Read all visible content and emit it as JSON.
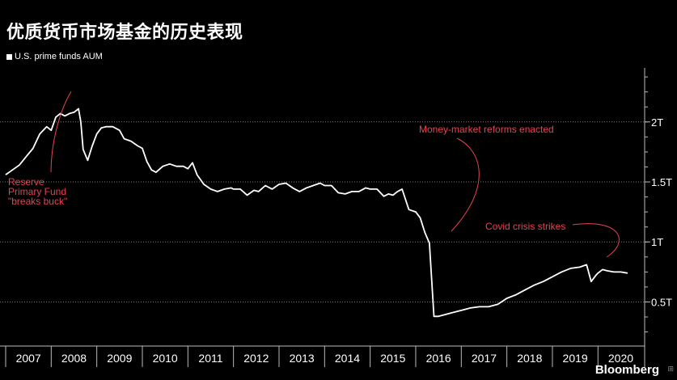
{
  "title": "优质货币市场基金的历史表现",
  "brand": "Bloomberg",
  "brand_mark": "⊞",
  "chart_data": {
    "type": "line",
    "legend": "U.S. prime funds AUM",
    "ylim": [
      0.2,
      2.45
    ],
    "xlim": [
      2007,
      2020.9
    ],
    "y_ticks": [
      {
        "value": 2.0,
        "label": "2T"
      },
      {
        "value": 1.5,
        "label": "1.5T"
      },
      {
        "value": 1.0,
        "label": "1T"
      },
      {
        "value": 0.5,
        "label": "0.5T"
      }
    ],
    "x_labels": [
      "2007",
      "2008",
      "2009",
      "2010",
      "2011",
      "2012",
      "2013",
      "2014",
      "2015",
      "2016",
      "2017",
      "2018",
      "2019",
      "2020"
    ],
    "x": [
      2007.0,
      2007.15,
      2007.3,
      2007.45,
      2007.6,
      2007.75,
      2007.9,
      2008.0,
      2008.1,
      2008.2,
      2008.3,
      2008.4,
      2008.5,
      2008.6,
      2008.65,
      2008.7,
      2008.8,
      2008.9,
      2009.0,
      2009.1,
      2009.2,
      2009.35,
      2009.5,
      2009.6,
      2009.75,
      2009.9,
      2010.0,
      2010.1,
      2010.2,
      2010.3,
      2010.45,
      2010.6,
      2010.75,
      2010.9,
      2011.0,
      2011.1,
      2011.2,
      2011.35,
      2011.5,
      2011.65,
      2011.8,
      2011.95,
      2012.0,
      2012.15,
      2012.3,
      2012.45,
      2012.55,
      2012.7,
      2012.85,
      2013.0,
      2013.15,
      2013.3,
      2013.45,
      2013.6,
      2013.75,
      2013.9,
      2014.0,
      2014.15,
      2014.3,
      2014.45,
      2014.6,
      2014.75,
      2014.9,
      2015.0,
      2015.15,
      2015.3,
      2015.4,
      2015.5,
      2015.6,
      2015.7,
      2015.85,
      2016.0,
      2016.1,
      2016.2,
      2016.3,
      2016.4,
      2016.5,
      2016.6,
      2016.8,
      2017.0,
      2017.2,
      2017.4,
      2017.6,
      2017.8,
      2018.0,
      2018.2,
      2018.4,
      2018.6,
      2018.8,
      2019.0,
      2019.2,
      2019.4,
      2019.6,
      2019.75,
      2019.85,
      2019.95,
      2020.0,
      2020.1,
      2020.2,
      2020.35,
      2020.5,
      2020.65
    ],
    "values": [
      1.56,
      1.6,
      1.64,
      1.71,
      1.78,
      1.9,
      1.96,
      1.93,
      2.04,
      2.07,
      2.05,
      2.07,
      2.08,
      2.11,
      2.0,
      1.77,
      1.68,
      1.8,
      1.9,
      1.95,
      1.96,
      1.96,
      1.93,
      1.86,
      1.84,
      1.8,
      1.78,
      1.67,
      1.6,
      1.58,
      1.63,
      1.65,
      1.63,
      1.63,
      1.61,
      1.66,
      1.56,
      1.48,
      1.44,
      1.42,
      1.44,
      1.45,
      1.44,
      1.44,
      1.39,
      1.43,
      1.42,
      1.47,
      1.44,
      1.48,
      1.49,
      1.45,
      1.42,
      1.45,
      1.47,
      1.49,
      1.47,
      1.47,
      1.41,
      1.4,
      1.42,
      1.42,
      1.45,
      1.44,
      1.44,
      1.38,
      1.4,
      1.39,
      1.42,
      1.44,
      1.27,
      1.25,
      1.2,
      1.08,
      0.99,
      0.38,
      0.38,
      0.39,
      0.41,
      0.43,
      0.45,
      0.46,
      0.46,
      0.48,
      0.53,
      0.56,
      0.6,
      0.64,
      0.67,
      0.71,
      0.75,
      0.78,
      0.79,
      0.81,
      0.67,
      0.72,
      0.74,
      0.77,
      0.76,
      0.75,
      0.75,
      0.74
    ],
    "annotations": [
      {
        "lines": [
          "Reserve",
          "Primary Fund",
          "\"breaks buck\""
        ]
      },
      {
        "lines": [
          "Money-market reforms enacted"
        ]
      },
      {
        "lines": [
          "Covid crisis strikes"
        ]
      }
    ],
    "colors": {
      "line": "#ffffff",
      "annotation": "#e8424f",
      "grid": "#7a7a7a",
      "axis": "#bbbbbb",
      "background": "#000000"
    }
  }
}
